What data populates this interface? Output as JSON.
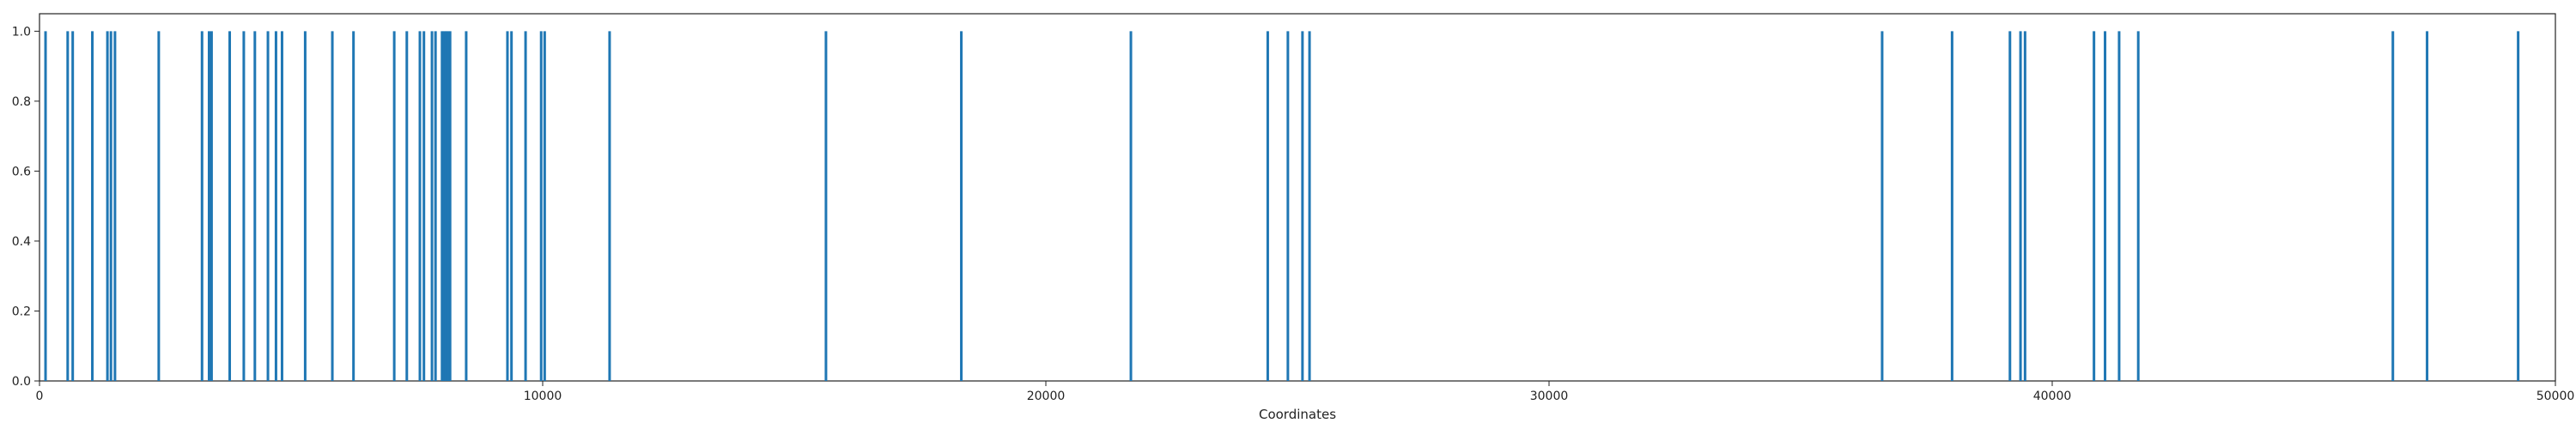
{
  "chart_data": {
    "type": "bar",
    "xlabel": "Coordinates",
    "ylabel": "",
    "title": "",
    "xlim": [
      0,
      50000
    ],
    "ylim": [
      0,
      1.05
    ],
    "x_ticks": [
      0,
      10000,
      20000,
      30000,
      40000,
      50000
    ],
    "y_ticks": [
      0.0,
      0.2,
      0.4,
      0.6,
      0.8,
      1.0
    ],
    "x_tick_labels": [
      "0",
      "10000",
      "20000",
      "30000",
      "40000",
      "50000"
    ],
    "y_tick_labels": [
      "0.0",
      "0.2",
      "0.4",
      "0.6",
      "0.8",
      "1.0"
    ],
    "grid": false,
    "bar_color": "#1f77b4",
    "x": [
      120,
      560,
      660,
      1050,
      1350,
      1420,
      1500,
      2370,
      3230,
      3370,
      3420,
      3780,
      4060,
      4280,
      4540,
      4700,
      4820,
      5280,
      5820,
      6240,
      7050,
      7300,
      7560,
      7640,
      7800,
      7870,
      8000,
      8040,
      8080,
      8120,
      8160,
      8480,
      9300,
      9380,
      9660,
      9970,
      10040,
      11330,
      15630,
      18320,
      21690,
      24410,
      24810,
      25100,
      25240,
      36620,
      38010,
      39160,
      39370,
      39460,
      40830,
      41050,
      41330,
      41710,
      46770,
      47450,
      49260
    ],
    "values": [
      1,
      1,
      1,
      1,
      1,
      1,
      1,
      1,
      1,
      1,
      1,
      1,
      1,
      1,
      1,
      1,
      1,
      1,
      1,
      1,
      1,
      1,
      1,
      1,
      1,
      1,
      1,
      1,
      1,
      1,
      1,
      1,
      1,
      1,
      1,
      1,
      1,
      1,
      1,
      1,
      1,
      1,
      1,
      1,
      1,
      1,
      1,
      1,
      1,
      1,
      1,
      1,
      1,
      1,
      1,
      1,
      1
    ]
  }
}
